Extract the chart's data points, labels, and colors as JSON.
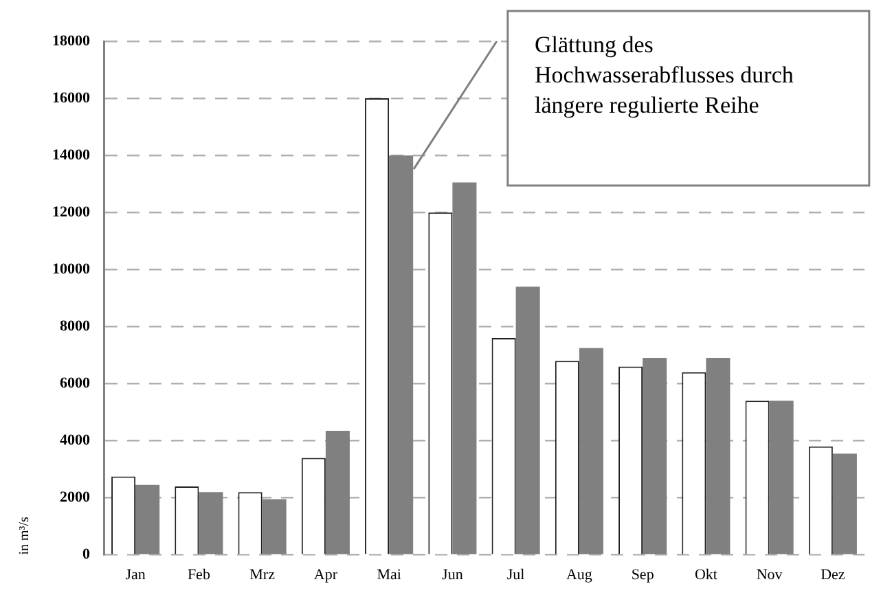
{
  "chart_data": {
    "type": "bar",
    "ylabel": "in m³/s",
    "categories": [
      "Jan",
      "Feb",
      "Mrz",
      "Apr",
      "Mai",
      "Jun",
      "Jul",
      "Aug",
      "Sep",
      "Okt",
      "Nov",
      "Dez"
    ],
    "series": [
      {
        "color": "#ffffff",
        "values": [
          2750,
          2400,
          2200,
          3400,
          16000,
          12000,
          7600,
          6800,
          6600,
          6400,
          5400,
          3800
        ]
      },
      {
        "color": "#808080",
        "values": [
          2450,
          2200,
          1950,
          4350,
          14000,
          13050,
          9400,
          7250,
          6900,
          6900,
          5400,
          3550
        ]
      }
    ],
    "ylim": [
      0,
      18000
    ],
    "yticks": [
      0,
      2000,
      4000,
      6000,
      8000,
      10000,
      12000,
      14000,
      16000,
      18000
    ],
    "grid": "y",
    "legend": false,
    "annotations": [
      "Glättung des Hochwasserabflusses durch längere regulierte Reihe"
    ]
  }
}
